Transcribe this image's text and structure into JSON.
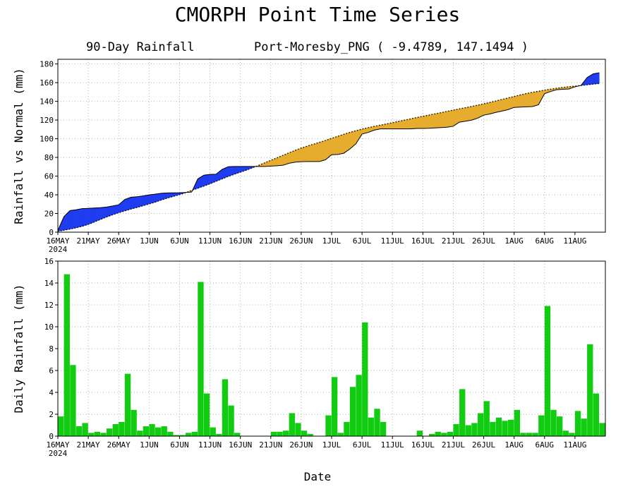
{
  "title": "CMORPH Point Time Series",
  "xlabel": "Date",
  "year_label": "2024",
  "x_ticks": [
    "16MAY",
    "21MAY",
    "26MAY",
    "1JUN",
    "6JUN",
    "11JUN",
    "16JUN",
    "21JUN",
    "26JUN",
    "1JUL",
    "6JUL",
    "11JUL",
    "16JUL",
    "21JUL",
    "26JUL",
    "1AUG",
    "6AUG",
    "11AUG"
  ],
  "colors": {
    "deficit": "#e6ac2e",
    "surplus": "#1f3cf0",
    "bars": "#11cc11"
  },
  "chart_data": [
    {
      "type": "area",
      "subtitle_left": "90-Day Rainfall",
      "subtitle_right": "Port-Moresby_PNG ( -9.4789, 147.1494 )",
      "ylabel": "Rainfall vs Normal (mm)",
      "ylim": [
        0,
        185
      ],
      "yticks": [
        0,
        20,
        40,
        60,
        80,
        100,
        120,
        140,
        160,
        180
      ],
      "grid": true,
      "series": [
        {
          "name": "Rainfall",
          "values": [
            1.8,
            16.6,
            23.1,
            24.0,
            25.2,
            25.5,
            25.9,
            26.2,
            26.9,
            28.0,
            29.3,
            35.0,
            37.4,
            37.9,
            38.8,
            39.9,
            40.7,
            41.6,
            42.0,
            42.1,
            42.2,
            42.5,
            42.9,
            57.0,
            61.0,
            61.8,
            62.0,
            67.2,
            70.0,
            70.3,
            70.3,
            70.3,
            70.3,
            70.3,
            70.3,
            70.7,
            71.1,
            71.6,
            73.7,
            74.9,
            75.4,
            75.6,
            75.6,
            75.6,
            77.5,
            82.9,
            83.2,
            84.5,
            89.0,
            94.6,
            105.0,
            106.7,
            109.2,
            110.5,
            110.5,
            110.5,
            110.5,
            110.5,
            110.5,
            111.0,
            111.0,
            111.2,
            111.6,
            111.9,
            112.3,
            113.4,
            117.7,
            118.7,
            119.9,
            122.0,
            125.2,
            126.5,
            128.2,
            129.6,
            131.1,
            133.5,
            133.8,
            134.1,
            134.4,
            136.3,
            148.2,
            150.6,
            152.4,
            152.9,
            153.2,
            155.5,
            157.1,
            165.5,
            169.4,
            170.6
          ]
        },
        {
          "name": "Normal",
          "values": [
            1.0,
            2.1,
            3.3,
            4.7,
            6.3,
            8.3,
            10.9,
            13.6,
            16.2,
            18.6,
            20.8,
            22.8,
            24.7,
            26.4,
            28.3,
            30.2,
            32.1,
            34.4,
            36.5,
            38.3,
            40.2,
            42.3,
            44.7,
            47.0,
            49.3,
            51.7,
            54.4,
            57.0,
            59.6,
            62.0,
            64.2,
            66.4,
            68.9,
            71.5,
            74.2,
            76.9,
            79.5,
            82.2,
            84.9,
            87.5,
            90.0,
            92.1,
            94.1,
            96.1,
            98.2,
            100.4,
            102.6,
            104.7,
            106.8,
            108.6,
            110.3,
            111.8,
            113.2,
            114.5,
            115.8,
            117.1,
            118.5,
            119.9,
            121.3,
            122.7,
            124.0,
            125.3,
            126.6,
            127.9,
            129.3,
            130.6,
            131.9,
            133.2,
            134.5,
            135.9,
            137.3,
            138.8,
            140.4,
            142.0,
            143.6,
            145.2,
            146.8,
            148.3,
            149.6,
            150.8,
            152.0,
            153.0,
            154.0,
            154.8,
            155.6,
            156.3,
            157.0,
            157.7,
            158.4,
            159.1
          ]
        }
      ]
    },
    {
      "type": "bar",
      "ylabel": "Daily Rainfall (mm)",
      "ylim": [
        0,
        16
      ],
      "yticks": [
        0,
        2,
        4,
        6,
        8,
        10,
        12,
        14,
        16
      ],
      "grid": true,
      "values": [
        1.8,
        14.8,
        6.5,
        0.9,
        1.2,
        0.3,
        0.4,
        0.3,
        0.7,
        1.1,
        1.3,
        5.7,
        2.4,
        0.5,
        0.9,
        1.1,
        0.8,
        0.9,
        0.4,
        0.1,
        0.1,
        0.3,
        0.4,
        14.1,
        3.9,
        0.8,
        0.2,
        5.2,
        2.8,
        0.3,
        0,
        0,
        0,
        0,
        0,
        0.4,
        0.4,
        0.5,
        2.1,
        1.2,
        0.5,
        0.2,
        0,
        0,
        1.9,
        5.4,
        0.3,
        1.3,
        4.5,
        5.6,
        10.4,
        1.7,
        2.5,
        1.3,
        0,
        0,
        0,
        0,
        0,
        0.5,
        0,
        0.2,
        0.4,
        0.3,
        0.4,
        1.1,
        4.3,
        1.0,
        1.2,
        2.1,
        3.2,
        1.3,
        1.7,
        1.4,
        1.5,
        2.4,
        0.3,
        0.3,
        0.3,
        1.9,
        11.9,
        2.4,
        1.8,
        0.5,
        0.3,
        2.3,
        1.6,
        8.4,
        3.9,
        1.2
      ]
    }
  ]
}
